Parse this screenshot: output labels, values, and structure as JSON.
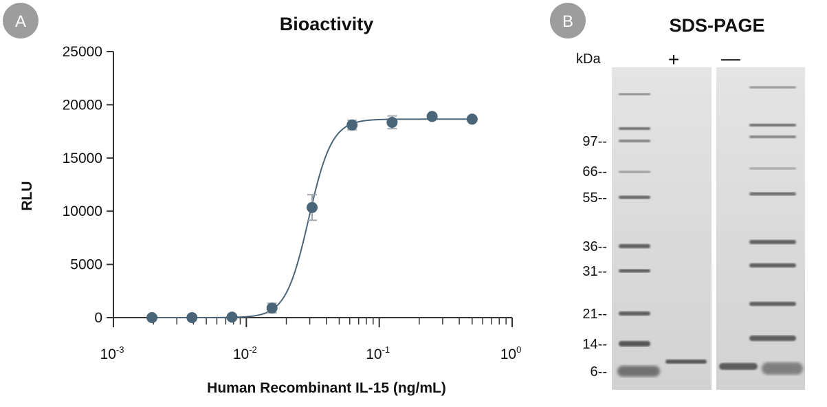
{
  "panel_a": {
    "badge": "A",
    "chart_data": {
      "type": "scatter",
      "title": "Bioactivity",
      "xlabel": "Human Recombinant IL-15 (ng/mL)",
      "ylabel": "RLU",
      "x_scale": "log",
      "xlim": [
        0.001,
        1
      ],
      "ylim": [
        0,
        25000
      ],
      "x_ticks": [
        {
          "base": "10",
          "exp": "-3"
        },
        {
          "base": "10",
          "exp": "-2"
        },
        {
          "base": "10",
          "exp": "-1"
        },
        {
          "base": "10",
          "exp": "0"
        }
      ],
      "y_ticks": [
        "0",
        "5000",
        "10000",
        "15000",
        "20000",
        "25000"
      ],
      "grid": false,
      "marker_color": "#4a6578",
      "line_color": "#4a6578",
      "errorbar_color": "#a0a8ae",
      "points": [
        {
          "x": 0.00195,
          "y": 0,
          "err": 0
        },
        {
          "x": 0.0039,
          "y": 0,
          "err": 0
        },
        {
          "x": 0.0078,
          "y": 50,
          "err": 200
        },
        {
          "x": 0.0156,
          "y": 900,
          "err": 450
        },
        {
          "x": 0.03125,
          "y": 10350,
          "err": 1200
        },
        {
          "x": 0.0625,
          "y": 18100,
          "err": 450
        },
        {
          "x": 0.125,
          "y": 18350,
          "err": 600
        },
        {
          "x": 0.25,
          "y": 18900,
          "err": 100
        },
        {
          "x": 0.5,
          "y": 18650,
          "err": 100
        }
      ],
      "fit": {
        "bottom": 0,
        "top": 18650,
        "ec50": 0.0295,
        "hill": 5
      }
    }
  },
  "panel_b": {
    "badge": "B",
    "title": "SDS-PAGE",
    "unit_label": "kDa",
    "lane_plus": "+",
    "lane_minus": "—",
    "markers": [
      "97--",
      "66--",
      "55--",
      "36--",
      "31--",
      "21--",
      "14--",
      "6--"
    ]
  },
  "colors": {
    "badge": "#9d9d9d",
    "gel_background": "#dadada",
    "band": "#4a4a4a"
  }
}
